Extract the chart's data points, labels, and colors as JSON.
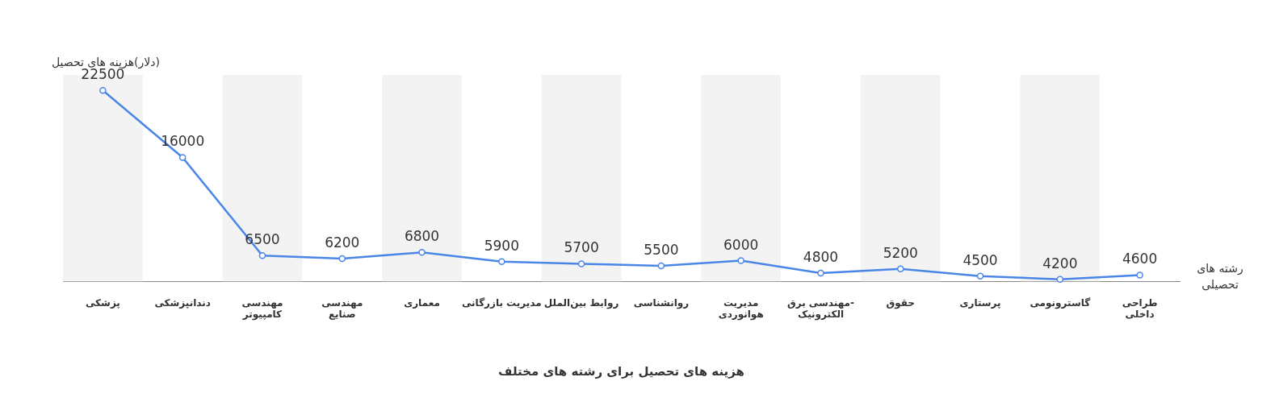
{
  "chart_data": {
    "type": "line",
    "title": "هزینه های تحصیل برای رشته های مختلف",
    "xlabel": "رشته های\nتحصیلی",
    "ylabel": "(دلار)هزینه های تحصیل",
    "categories": [
      "پزشکی",
      "دندانپزشکی",
      "مهندسی\nکامپیوتر",
      "مهندسی\nصنایع",
      "معماری",
      "مدیریت بازرگانی",
      "روابط بین‌الملل",
      "روانشناسی",
      "مدیریت\nهوانوردی",
      "مهندسی برق-\nالکترونیک",
      "حقوق",
      "پرستاری",
      "گاسترونومی",
      "طراحی\nداخلی"
    ],
    "series": [
      {
        "color": "#4a86e8",
        "values": [
          22500,
          16000,
          6500,
          6200,
          6800,
          5900,
          5700,
          5500,
          6000,
          4800,
          5200,
          4500,
          4200,
          4600
        ]
      }
    ],
    "data_labels": true,
    "marker": "circle",
    "grid": false,
    "legend": false,
    "bands": [
      {
        "axis": "x",
        "from": "پزشکی",
        "to": "پزشکی",
        "color": "#f3f3f3"
      },
      {
        "axis": "x",
        "from": "مهندسی\nکامپیوتر",
        "to": "مهندسی\nکامپیوتر",
        "color": "#f3f3f3"
      },
      {
        "axis": "x",
        "from": "معماری",
        "to": "معماری",
        "color": "#f3f3f3"
      },
      {
        "axis": "x",
        "from": "روابط بین‌الملل",
        "to": "روابط بین‌الملل",
        "color": "#f3f3f3"
      },
      {
        "axis": "x",
        "from": "مدیریت\nهوانوردی",
        "to": "مدیریت\nهوانوردی",
        "color": "#f3f3f3"
      },
      {
        "axis": "x",
        "from": "حقوق",
        "to": "حقوق",
        "color": "#f3f3f3"
      },
      {
        "axis": "x",
        "from": "گاسترونومی",
        "to": "گاسترونومی",
        "color": "#f3f3f3"
      }
    ]
  }
}
